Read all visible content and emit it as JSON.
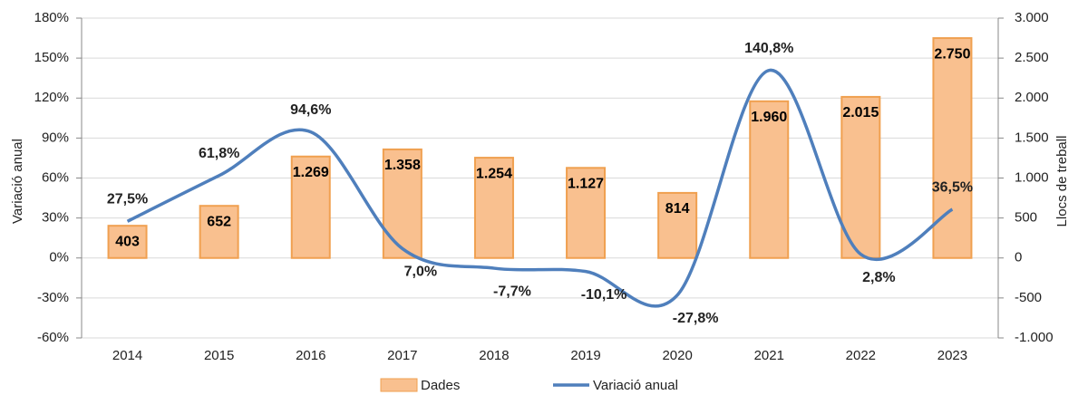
{
  "chart_data": {
    "type": "bar",
    "categories": [
      "2014",
      "2015",
      "2016",
      "2017",
      "2018",
      "2019",
      "2020",
      "2021",
      "2022",
      "2023"
    ],
    "ylabel": "Variació anual",
    "y2label": "Llocs de treball",
    "ylim": [
      -60,
      180
    ],
    "yticks": [
      {
        "value": -60,
        "label": "-60%"
      },
      {
        "value": -30,
        "label": "-30%"
      },
      {
        "value": 0,
        "label": "0%"
      },
      {
        "value": 30,
        "label": "30%"
      },
      {
        "value": 60,
        "label": "60%"
      },
      {
        "value": 90,
        "label": "90%"
      },
      {
        "value": 120,
        "label": "120%"
      },
      {
        "value": 150,
        "label": "150%"
      },
      {
        "value": 180,
        "label": "180%"
      }
    ],
    "y2lim": [
      -1000,
      3000
    ],
    "y2ticks": [
      {
        "value": -1000,
        "label": "-1.000"
      },
      -500,
      0,
      500,
      {
        "value": 1000,
        "label": "1.000"
      },
      {
        "value": 1500,
        "label": "1.500"
      },
      {
        "value": 2000,
        "label": "2.000"
      },
      {
        "value": 2500,
        "label": "2.500"
      },
      {
        "value": 3000,
        "label": "3.000"
      }
    ],
    "grid": true,
    "legend": "bottom",
    "series": [
      {
        "name": "Dades",
        "type": "bar",
        "axis": "y2",
        "color": "#f9c08f",
        "edgecolor": "#f0a050",
        "values": [
          403,
          652,
          1269,
          1358,
          1254,
          1127,
          814,
          1960,
          2015,
          2750
        ],
        "value_labels": [
          "403",
          "652",
          "1.269",
          "1.358",
          "1.254",
          "1.127",
          "814",
          "1.960",
          "2.015",
          "2.750"
        ]
      },
      {
        "name": "Variació anual",
        "type": "line",
        "color": "#4f7fbc",
        "values": [
          27.5,
          61.8,
          94.6,
          7.0,
          -7.7,
          -10.1,
          -27.8,
          140.8,
          2.8,
          36.5
        ],
        "value_labels": [
          "27,5%",
          "61,8%",
          "94,6%",
          "7,0%",
          "-7,7%",
          "-10,1%",
          "-27,8%",
          "140,8%",
          "2,8%",
          "36,5%"
        ]
      }
    ]
  }
}
